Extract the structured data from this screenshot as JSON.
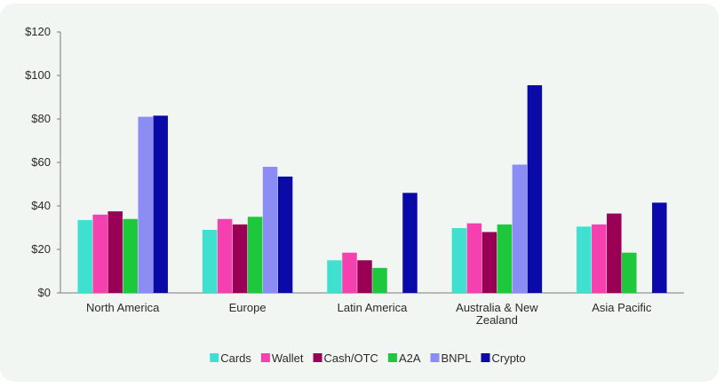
{
  "chart_data": {
    "type": "bar",
    "title": "",
    "xlabel": "",
    "ylabel": "",
    "ylim": [
      0,
      120
    ],
    "yticks": [
      "$0",
      "$20",
      "$40",
      "$60",
      "$80",
      "$100",
      "$120"
    ],
    "ytick_values": [
      0,
      20,
      40,
      60,
      80,
      100,
      120
    ],
    "categories": [
      [
        "North America"
      ],
      [
        "Europe"
      ],
      [
        "Latin America"
      ],
      [
        "Australia & New",
        "Zealand"
      ],
      [
        "Asia Pacific"
      ]
    ],
    "series": [
      {
        "name": "Cards",
        "color": "#40e0d0",
        "values": [
          33.5,
          29.0,
          15.0,
          29.8,
          30.5
        ]
      },
      {
        "name": "Wallet",
        "color": "#f540b0",
        "values": [
          36.0,
          34.0,
          18.5,
          32.0,
          31.5
        ]
      },
      {
        "name": "Cash/OTC",
        "color": "#990055",
        "values": [
          37.5,
          31.5,
          15.0,
          28.0,
          36.5
        ]
      },
      {
        "name": "A2A",
        "color": "#1ec83c",
        "values": [
          34.0,
          35.0,
          11.5,
          31.5,
          18.5
        ]
      },
      {
        "name": "BNPL",
        "color": "#8c8cf5",
        "values": [
          81.0,
          58.0,
          null,
          59.0,
          null
        ]
      },
      {
        "name": "Crypto",
        "color": "#0a0aa8",
        "values": [
          81.5,
          53.5,
          46.0,
          95.5,
          41.5
        ]
      }
    ],
    "legend_position": "bottom",
    "grid": false
  }
}
